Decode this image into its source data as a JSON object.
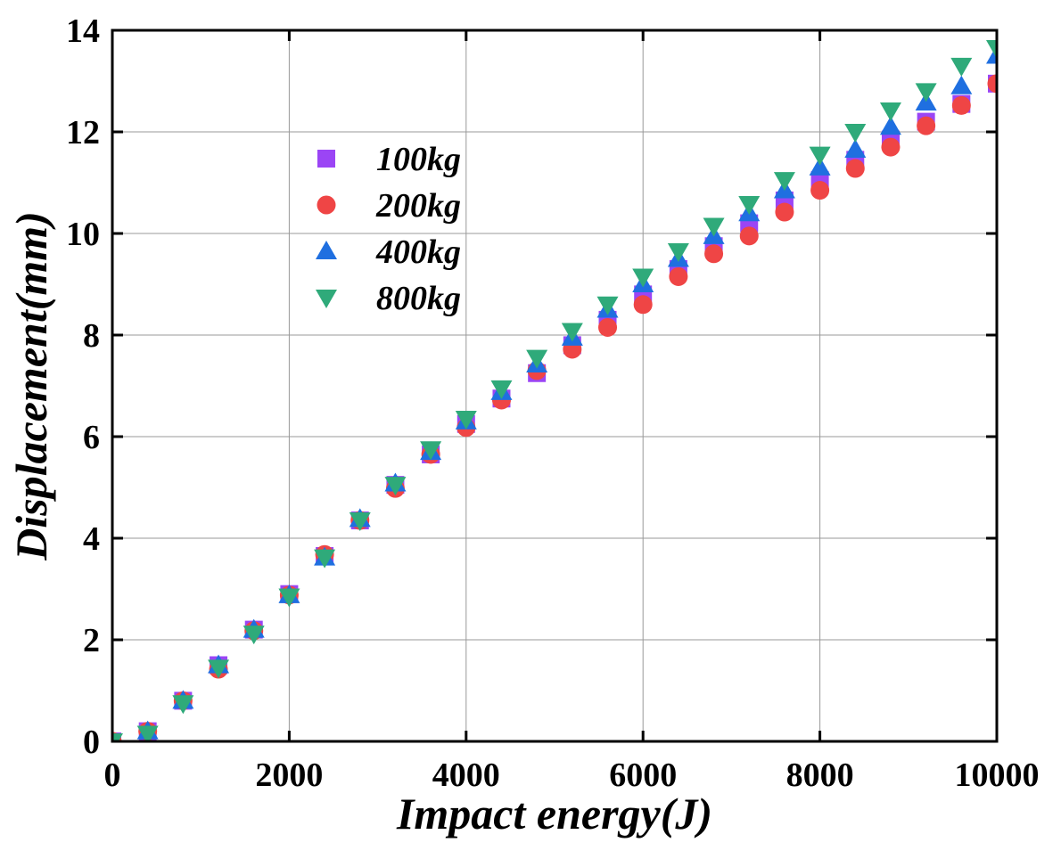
{
  "chart_data": {
    "type": "scatter",
    "title": "",
    "xlabel": "Impact energy(J)",
    "ylabel": "Displacement(mm)",
    "xlim": [
      0,
      10000
    ],
    "ylim": [
      0,
      14
    ],
    "xticks": [
      0,
      2000,
      4000,
      6000,
      8000,
      10000
    ],
    "yticks": [
      0,
      2,
      4,
      6,
      8,
      10,
      12,
      14
    ],
    "xtick_labels": [
      "0",
      "2000",
      "4000",
      "6000",
      "8000",
      "10000"
    ],
    "ytick_labels": [
      "0",
      "2",
      "4",
      "6",
      "8",
      "10",
      "12",
      "14"
    ],
    "grid": true,
    "legend_position": "upper-left",
    "x": [
      0,
      400,
      800,
      1200,
      1600,
      2000,
      2400,
      2800,
      3200,
      3600,
      4000,
      4400,
      4800,
      5200,
      5600,
      6000,
      6400,
      6800,
      7200,
      7600,
      8000,
      8400,
      8800,
      9200,
      9600,
      10000
    ],
    "series": [
      {
        "name": "100kg",
        "marker": "square",
        "color": "#9b45f5",
        "values": [
          0,
          0.2,
          0.8,
          1.5,
          2.2,
          2.9,
          3.65,
          4.35,
          5.05,
          5.65,
          6.25,
          6.75,
          7.25,
          7.8,
          8.3,
          8.8,
          9.3,
          9.75,
          10.2,
          10.65,
          11.05,
          11.45,
          11.85,
          12.2,
          12.55,
          12.95
        ]
      },
      {
        "name": "200kg",
        "marker": "circle",
        "color": "#ef4545",
        "values": [
          0,
          0.2,
          0.8,
          1.42,
          2.18,
          2.88,
          3.68,
          4.35,
          4.98,
          5.65,
          6.18,
          6.72,
          7.3,
          7.72,
          8.15,
          8.6,
          9.15,
          9.6,
          9.95,
          10.42,
          10.85,
          11.28,
          11.7,
          12.12,
          12.52,
          12.95
        ]
      },
      {
        "name": "400kg",
        "marker": "triangle-up",
        "color": "#1f6fe0",
        "values": [
          0,
          0.2,
          0.8,
          1.5,
          2.2,
          2.88,
          3.62,
          4.38,
          5.08,
          5.7,
          6.3,
          6.88,
          7.42,
          7.95,
          8.5,
          9.0,
          9.5,
          9.95,
          10.4,
          10.85,
          11.3,
          11.65,
          12.1,
          12.58,
          12.9,
          13.5
        ]
      },
      {
        "name": "800kg",
        "marker": "triangle-down",
        "color": "#2faa7a",
        "values": [
          0,
          0.15,
          0.75,
          1.45,
          2.12,
          2.85,
          3.62,
          4.35,
          5.05,
          5.75,
          6.35,
          6.95,
          7.55,
          8.08,
          8.6,
          9.15,
          9.65,
          10.15,
          10.58,
          11.05,
          11.55,
          12.0,
          12.42,
          12.8,
          13.3,
          13.65
        ]
      }
    ]
  }
}
